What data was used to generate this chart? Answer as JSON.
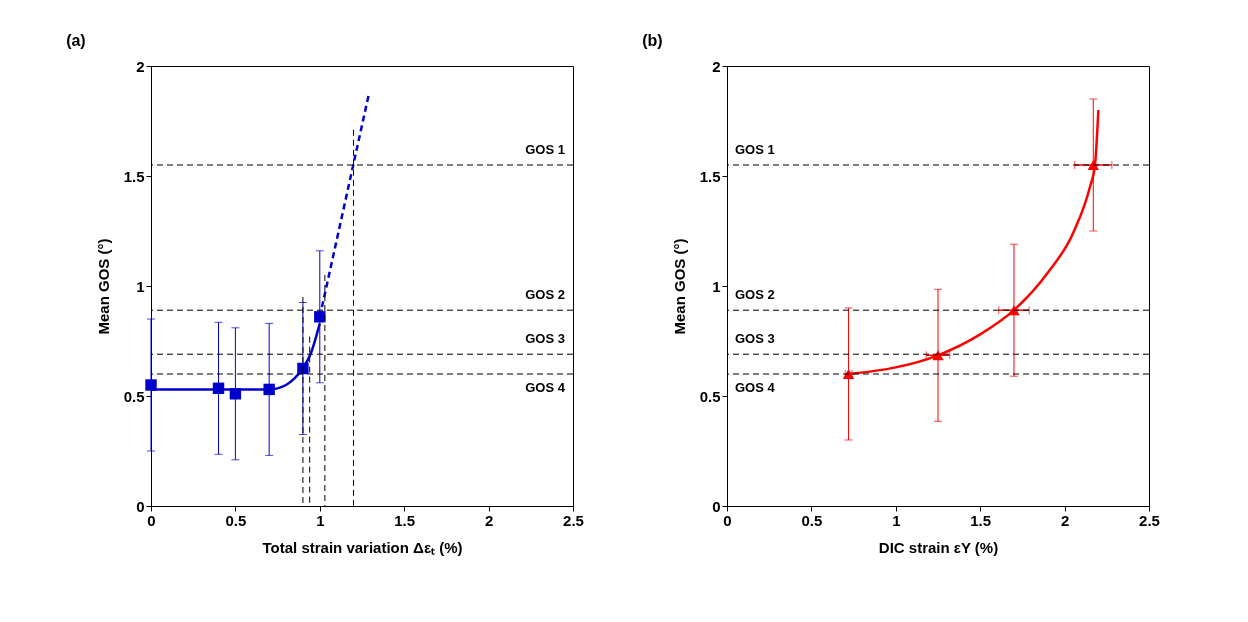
{
  "chart_data": [
    {
      "type": "scatter",
      "title": "(a)",
      "xlabel": "Total strain variation Δεₜ (%)",
      "ylabel": "Mean GOS (°)",
      "xlim": [
        0,
        2.5
      ],
      "xticks": [
        0,
        0.5,
        1,
        1.5,
        2,
        2.5
      ],
      "ylim": [
        0,
        2
      ],
      "yticks": [
        0,
        0.5,
        1,
        1.5,
        2
      ],
      "grid": false,
      "series": [
        {
          "type": "line",
          "color": "#0000cc",
          "line_style": "solid",
          "marker": "none",
          "x": [
            0,
            0.7,
            0.8,
            0.85,
            0.9,
            0.95,
            1.0
          ],
          "values": [
            0.53,
            0.53,
            0.55,
            0.58,
            0.625,
            0.7,
            0.83
          ]
        },
        {
          "type": "line",
          "color": "#0000cc",
          "line_style": "dashed",
          "marker": "none",
          "x": [
            1.0,
            1.29
          ],
          "values": [
            0.86,
            1.87
          ]
        },
        {
          "type": "scatter",
          "color": "#0000cc",
          "marker": "square",
          "x": [
            0,
            0.4,
            0.5,
            0.7,
            0.9,
            1.0
          ],
          "values": [
            0.55,
            0.535,
            0.51,
            0.53,
            0.625,
            0.86
          ],
          "errors": [
            0.3,
            0.3,
            0.3,
            0.3,
            0.3,
            0.3
          ]
        },
        {
          "type": "line",
          "color": "#000000",
          "line_style": "dashed",
          "marker": "none",
          "x": [
            0.9,
            0.9
          ],
          "values": [
            0.95,
            0
          ]
        },
        {
          "type": "line",
          "color": "#000000",
          "line_style": "dashed",
          "marker": "none",
          "x": [
            0.94,
            0.94
          ],
          "values": [
            0.77,
            0
          ]
        },
        {
          "type": "line",
          "color": "#000000",
          "line_style": "dashed",
          "marker": "none",
          "x": [
            1.03,
            1.03
          ],
          "values": [
            1.05,
            0
          ]
        },
        {
          "type": "line",
          "color": "#000000",
          "line_style": "dashed",
          "marker": "none",
          "x": [
            1.2,
            1.2
          ],
          "values": [
            1.71,
            0
          ]
        }
      ],
      "ref_lines": [
        {
          "axis": "y",
          "value": 1.55,
          "label": "GOS 1",
          "color": "#000000",
          "line_style": "dashed"
        },
        {
          "axis": "y",
          "value": 0.89,
          "label": "GOS 2",
          "color": "#000000",
          "line_style": "dashed"
        },
        {
          "axis": "y",
          "value": 0.69,
          "label": "GOS 3",
          "color": "#000000",
          "line_style": "dashed"
        },
        {
          "axis": "y",
          "value": 0.6,
          "label": "GOS 4",
          "color": "#000000",
          "line_style": "dashed"
        }
      ]
    },
    {
      "type": "scatter",
      "title": "(b)",
      "xlabel": "DIC strain εY (%)",
      "ylabel": "Mean GOS (°)",
      "xlim": [
        0,
        2.5
      ],
      "xticks": [
        0,
        0.5,
        1,
        1.5,
        2,
        2.5
      ],
      "ylim": [
        0,
        2
      ],
      "yticks": [
        0,
        0.5,
        1,
        1.5,
        2
      ],
      "grid": false,
      "series": [
        {
          "type": "line",
          "color": "#ff0000",
          "line_style": "solid",
          "marker": "none",
          "x": [
            0.72,
            1.0,
            1.25,
            1.5,
            1.7,
            1.9,
            2.05,
            2.15,
            2.18,
            2.2
          ],
          "values": [
            0.6,
            0.63,
            0.685,
            0.78,
            0.89,
            1.06,
            1.24,
            1.45,
            1.55,
            1.8
          ]
        },
        {
          "type": "scatter",
          "color": "#ff0000",
          "marker": "triangle",
          "x": [
            0.72,
            1.25,
            1.7,
            2.17
          ],
          "values": [
            0.6,
            0.685,
            0.89,
            1.55
          ],
          "errors": [
            0.3,
            0.3,
            0.3,
            0.3
          ],
          "xerrors": [
            0.02,
            0.07,
            0.09,
            0.11
          ]
        }
      ],
      "ref_lines": [
        {
          "axis": "y",
          "value": 1.55,
          "label": "GOS 1",
          "color": "#000000",
          "line_style": "dashed"
        },
        {
          "axis": "y",
          "value": 0.89,
          "label": "GOS 2",
          "color": "#000000",
          "line_style": "dashed"
        },
        {
          "axis": "y",
          "value": 0.69,
          "label": "GOS 3",
          "color": "#000000",
          "line_style": "dashed"
        },
        {
          "axis": "y",
          "value": 0.6,
          "label": "GOS 4",
          "color": "#000000",
          "line_style": "dashed"
        }
      ]
    }
  ]
}
